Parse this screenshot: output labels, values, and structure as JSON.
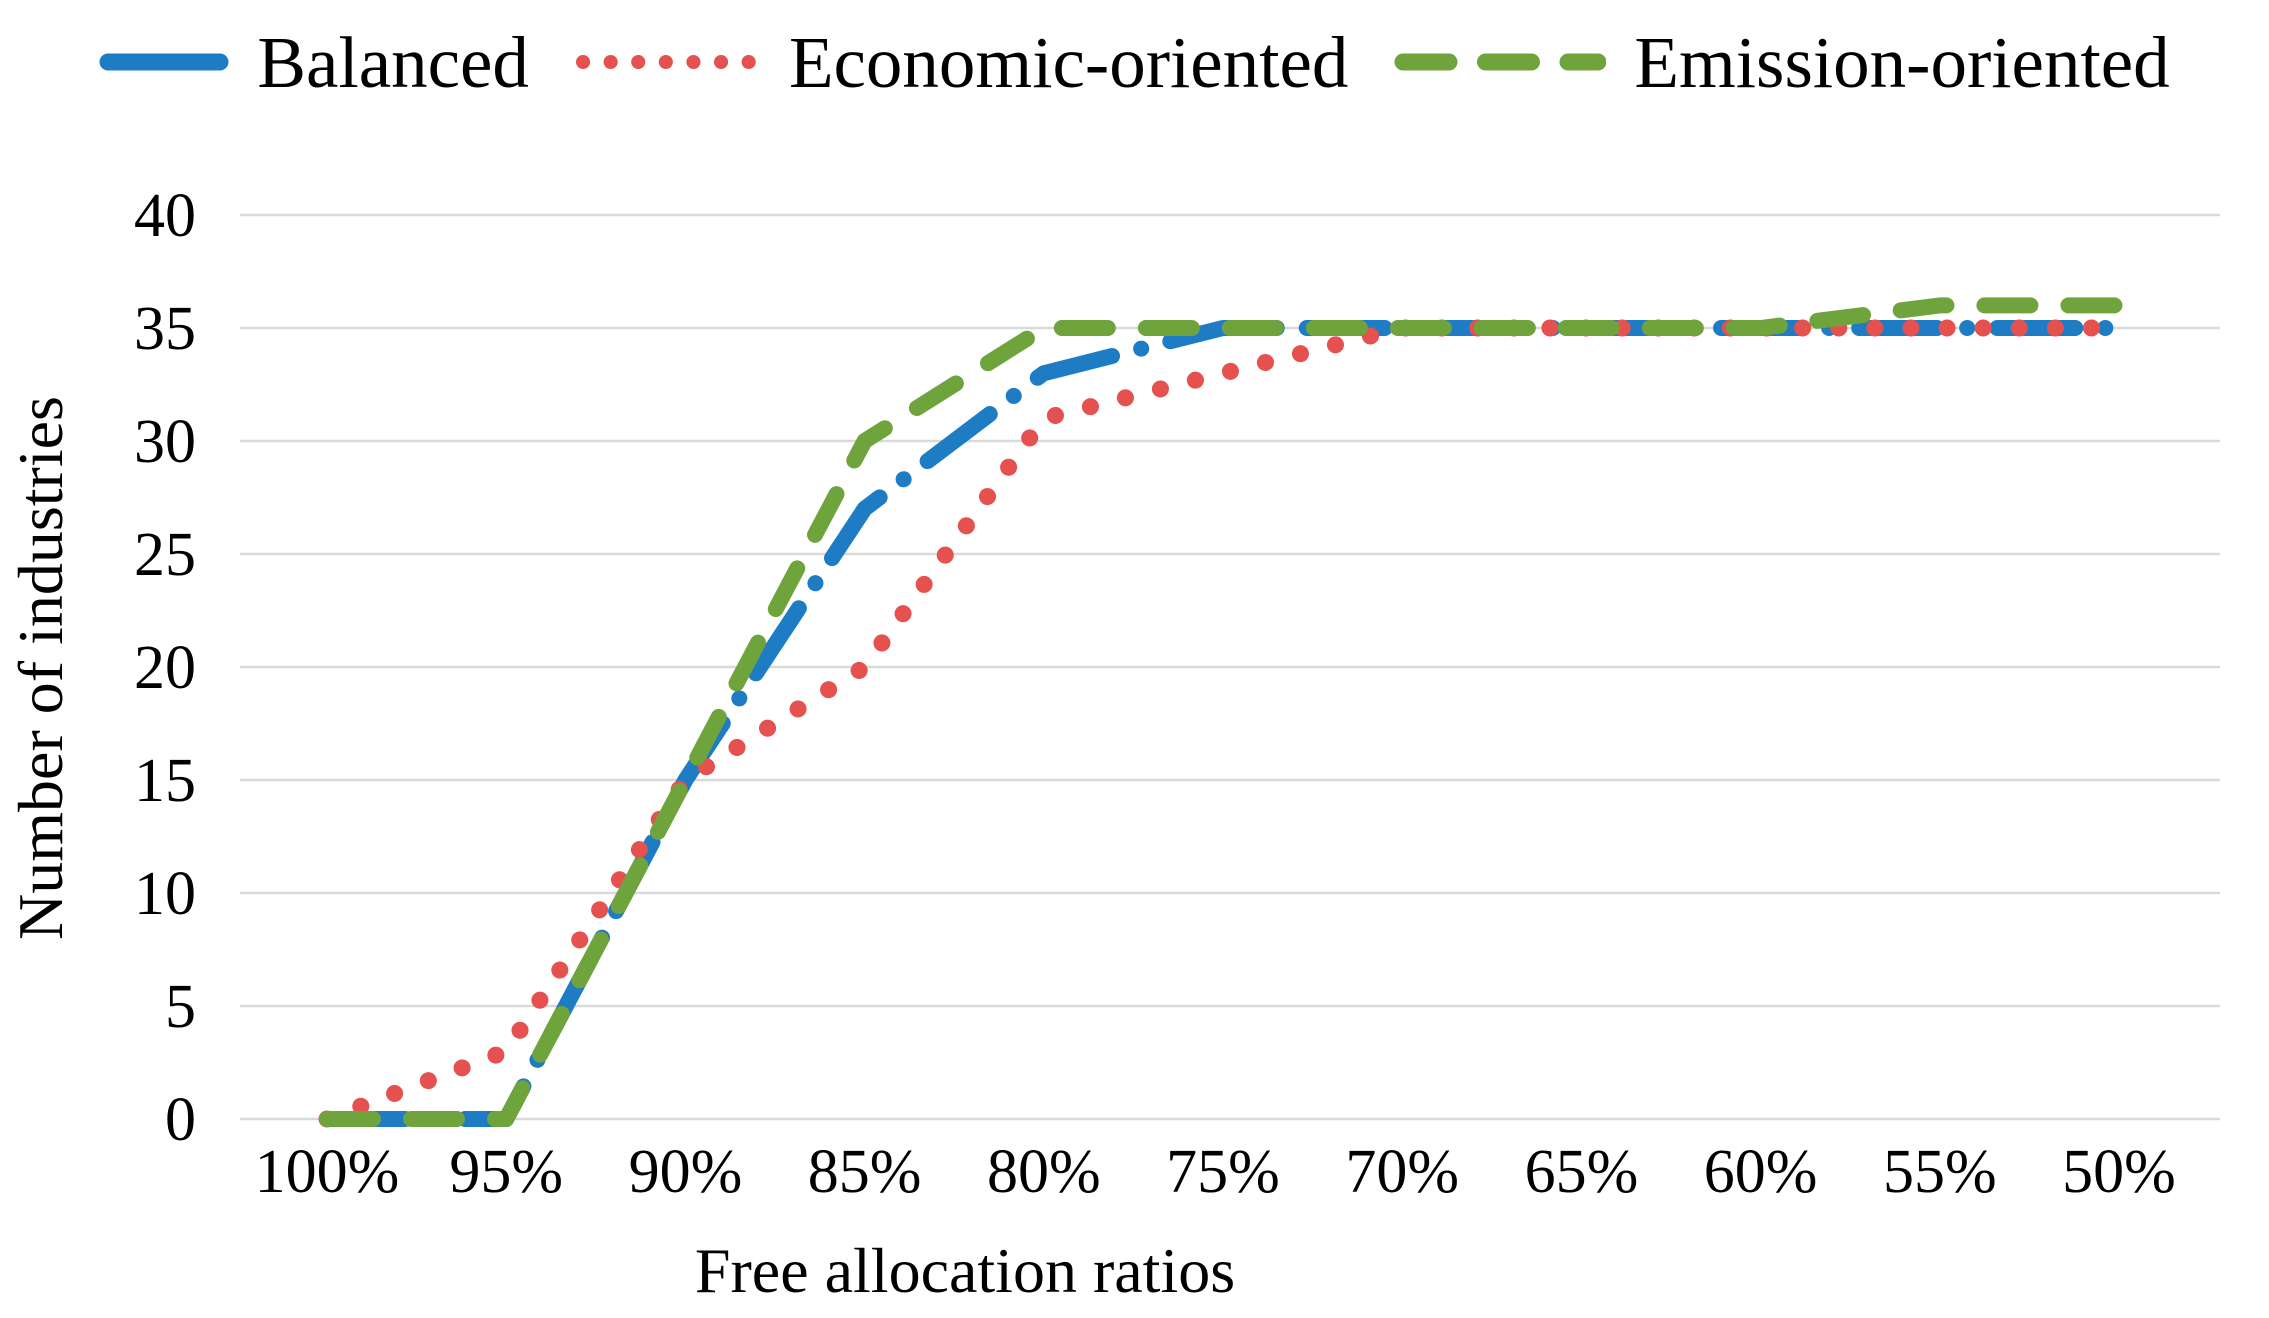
{
  "figure": {
    "background": "#FFFFFF",
    "grid_color": "#D9D9D9",
    "text_color": "#000000"
  },
  "chart_data": {
    "type": "line",
    "title": "",
    "xlabel": "Free allocation ratios",
    "ylabel": "Number of industries",
    "categories": [
      "100%",
      "95%",
      "90%",
      "85%",
      "80%",
      "75%",
      "70%",
      "65%",
      "60%",
      "55%",
      "50%"
    ],
    "y_ticks": [
      0,
      5,
      10,
      15,
      20,
      25,
      30,
      35,
      40
    ],
    "ylim": [
      0,
      40
    ],
    "grid": true,
    "legend_position": "top",
    "series": [
      {
        "name": "Balanced",
        "color": "#1E7CC5",
        "style": "long-dash-dot",
        "values": [
          0,
          0,
          15,
          27,
          33,
          35,
          35,
          35,
          35,
          35,
          35
        ]
      },
      {
        "name": "Economic-oriented",
        "color": "#E5514F",
        "style": "dotted",
        "values": [
          0,
          3,
          15,
          20,
          31,
          33,
          35,
          35,
          35,
          35,
          35
        ]
      },
      {
        "name": "Emission-oriented",
        "color": "#6FA43D",
        "style": "dashed",
        "values": [
          0,
          0,
          15,
          30,
          35,
          35,
          35,
          35,
          35,
          36,
          36
        ]
      }
    ]
  }
}
